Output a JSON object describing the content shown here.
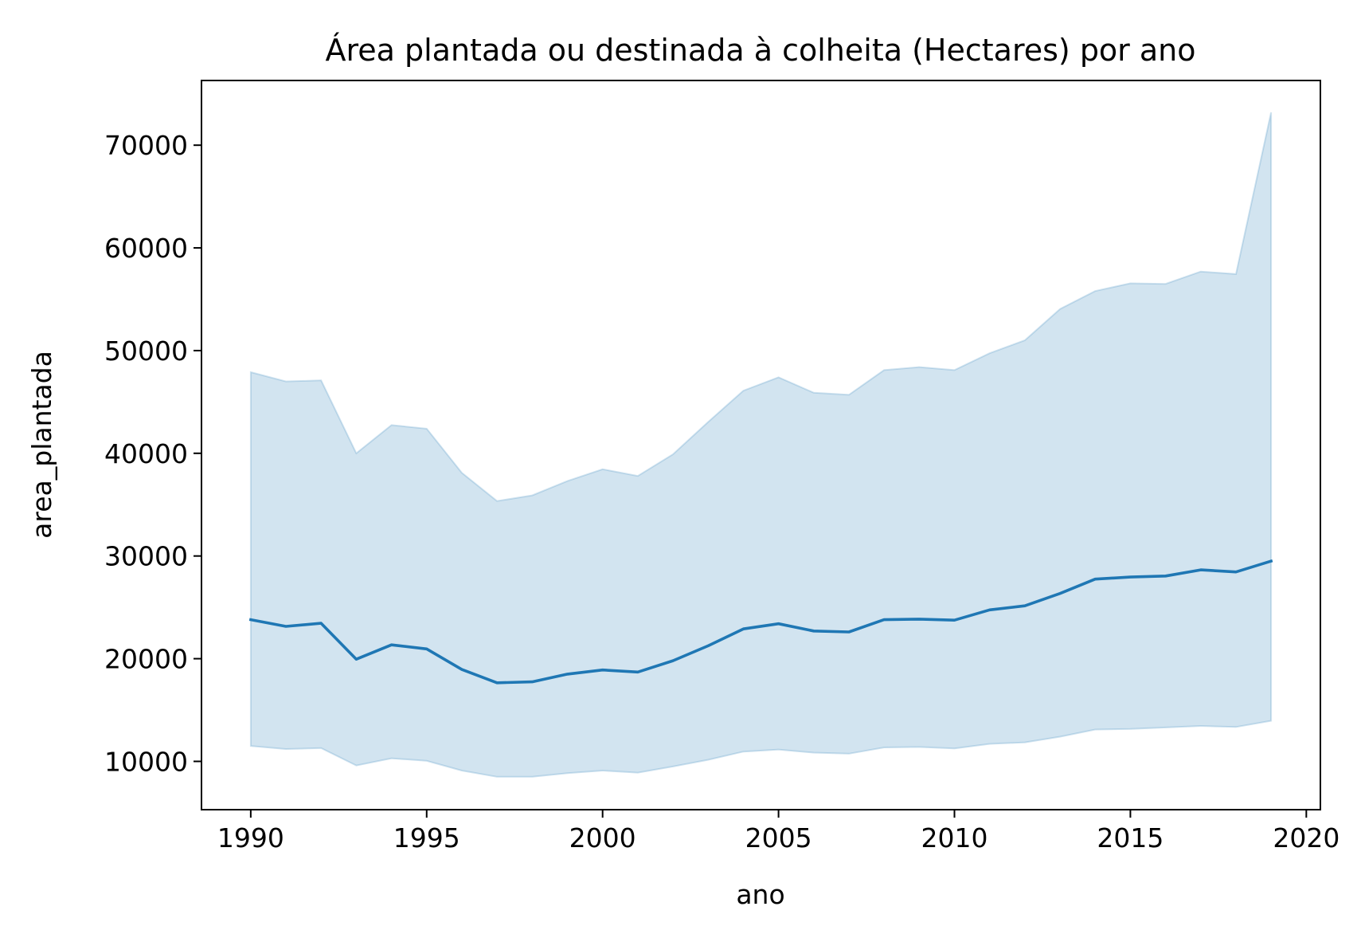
{
  "chart_data": {
    "type": "line",
    "title": "Área plantada ou destinada à colheita (Hectares) por ano",
    "xlabel": "ano",
    "ylabel": "area_plantada",
    "xlim": [
      1988.6,
      2020.4
    ],
    "ylim": [
      5300,
      76300
    ],
    "x_ticks": [
      1990,
      1995,
      2000,
      2005,
      2010,
      2015,
      2020
    ],
    "y_ticks": [
      10000,
      20000,
      30000,
      40000,
      50000,
      60000,
      70000
    ],
    "grid": false,
    "legend": "none",
    "colors": {
      "line": "#1f77b4",
      "band": "#1f77b4"
    },
    "x": [
      1990,
      1991,
      1992,
      1993,
      1994,
      1995,
      1996,
      1997,
      1998,
      1999,
      2000,
      2001,
      2002,
      2003,
      2004,
      2005,
      2006,
      2007,
      2008,
      2009,
      2010,
      2011,
      2012,
      2013,
      2014,
      2015,
      2016,
      2017,
      2018,
      2019
    ],
    "series": [
      {
        "values": [
          23800,
          23150,
          23450,
          19950,
          21350,
          20950,
          18950,
          17650,
          17750,
          18500,
          18900,
          18700,
          19800,
          21250,
          22900,
          23400,
          22700,
          22600,
          23800,
          23850,
          23750,
          24750,
          25150,
          26350,
          27750,
          27950,
          28050,
          28650,
          28450,
          29500
        ],
        "ci_low": [
          11500,
          11200,
          11300,
          9600,
          10300,
          10050,
          9100,
          8500,
          8500,
          8850,
          9100,
          8900,
          9500,
          10150,
          10950,
          11150,
          10850,
          10750,
          11350,
          11400,
          11250,
          11700,
          11850,
          12400,
          13100,
          13150,
          13300,
          13450,
          13350,
          13950
        ],
        "ci_high": [
          47900,
          47000,
          47100,
          40000,
          42750,
          42400,
          38100,
          35350,
          35900,
          37300,
          38450,
          37800,
          39900,
          43050,
          46100,
          47400,
          45900,
          45700,
          48100,
          48400,
          48100,
          49750,
          51000,
          54050,
          55800,
          56550,
          56500,
          57700,
          57450,
          73200
        ]
      }
    ]
  }
}
